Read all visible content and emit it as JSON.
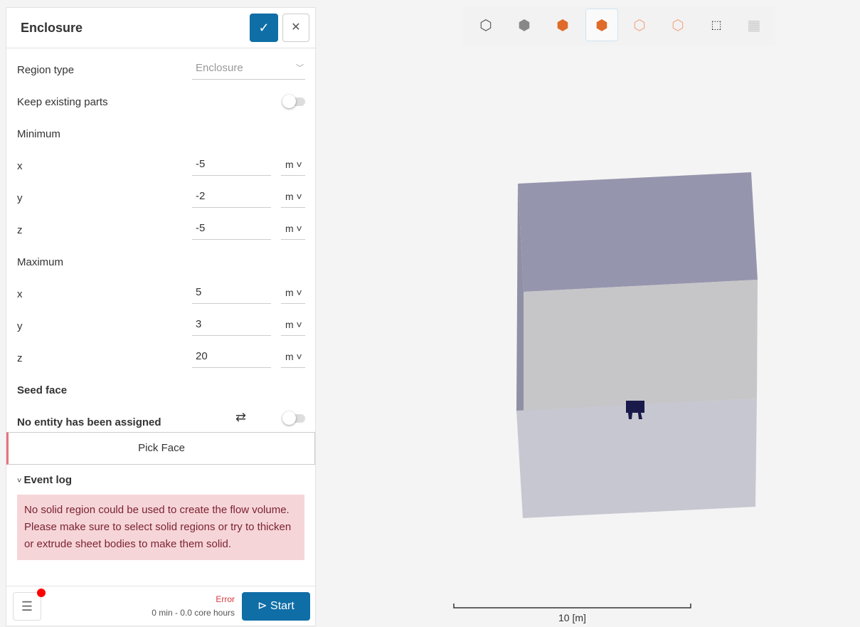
{
  "panel": {
    "title": "Enclosure",
    "region_type": {
      "label": "Region type",
      "value": "Enclosure"
    },
    "keep_existing": {
      "label": "Keep existing parts",
      "on": false
    },
    "minimum": {
      "label": "Minimum",
      "x": {
        "label": "x",
        "value": "-5",
        "unit": "m"
      },
      "y": {
        "label": "y",
        "value": "-2",
        "unit": "m"
      },
      "z": {
        "label": "z",
        "value": "-5",
        "unit": "m"
      }
    },
    "maximum": {
      "label": "Maximum",
      "x": {
        "label": "x",
        "value": "5",
        "unit": "m"
      },
      "y": {
        "label": "y",
        "value": "3",
        "unit": "m"
      },
      "z": {
        "label": "z",
        "value": "20",
        "unit": "m"
      }
    },
    "seed_face": {
      "label": "Seed face",
      "status": "No entity has been assigned",
      "pick": "Pick Face"
    },
    "event_log": {
      "label": "Event log",
      "message": "No solid region could be used to create the flow volume. Please make sure to select solid regions or try to thicken or extrude sheet bodies to make them solid."
    },
    "footer": {
      "status": "Error",
      "estimate": "0 min - 0.0 core hours",
      "start": "Start"
    }
  },
  "viewer": {
    "scale_label": "10 [m]",
    "colors": {
      "accent": "#0f6ea6",
      "error": "#d9363e"
    }
  }
}
